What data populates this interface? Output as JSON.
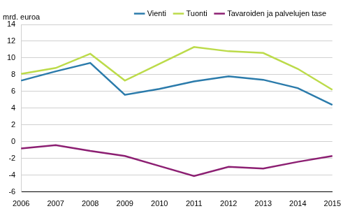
{
  "chart_data": {
    "type": "line",
    "ylabel": "mrd. euroa",
    "categories": [
      "2006",
      "2007",
      "2008",
      "2009",
      "2010",
      "2011",
      "2012",
      "2013",
      "2014",
      "2015"
    ],
    "series": [
      {
        "name": "Vienti",
        "color": "#2b7bab",
        "values": [
          7.3,
          8.4,
          9.4,
          5.6,
          6.3,
          7.2,
          7.8,
          7.4,
          6.4,
          4.4
        ]
      },
      {
        "name": "Tuonti",
        "color": "#bcdb4a",
        "values": [
          8.1,
          8.8,
          10.5,
          7.3,
          9.3,
          11.3,
          10.8,
          10.6,
          8.7,
          6.2
        ]
      },
      {
        "name": "Tavaroiden ja palvelujen tase",
        "color": "#8c1f72",
        "values": [
          -0.8,
          -0.4,
          -1.1,
          -1.7,
          -2.9,
          -4.1,
          -3.0,
          -3.2,
          -2.4,
          -1.7
        ]
      }
    ],
    "ylim": [
      -6,
      14
    ],
    "yticks": [
      -6,
      -4,
      -2,
      0,
      2,
      4,
      6,
      8,
      10,
      12,
      14
    ],
    "grid": true,
    "legend": "top"
  }
}
